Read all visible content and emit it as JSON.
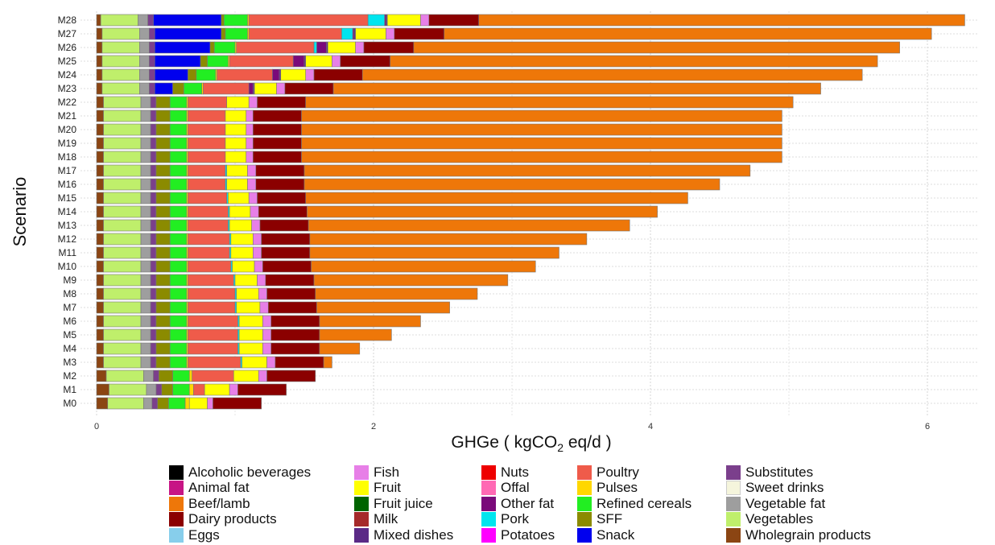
{
  "chart_data": {
    "type": "bar",
    "orientation": "horizontal",
    "stacked": true,
    "ylabel": "Scenario",
    "xlabel": "GHGe ( kgCO",
    "xlabel_sub": "2",
    "xlabel_tail": " eq/d )",
    "xlim": [
      0,
      6.3
    ],
    "xticks": [
      0,
      2,
      4,
      6
    ],
    "grid": true,
    "categories": [
      "M0",
      "M1",
      "M2",
      "M3",
      "M4",
      "M5",
      "M6",
      "M7",
      "M8",
      "M9",
      "M10",
      "M11",
      "M12",
      "M13",
      "M14",
      "M15",
      "M16",
      "M17",
      "M18",
      "M19",
      "M20",
      "M21",
      "M22",
      "M23",
      "M24",
      "M25",
      "M26",
      "M27",
      "M28"
    ],
    "series": [
      {
        "name": "Wholegrain products",
        "color": "#8B4513",
        "values": [
          0.08,
          0.09,
          0.07,
          0.05,
          0.05,
          0.05,
          0.05,
          0.05,
          0.05,
          0.05,
          0.05,
          0.05,
          0.05,
          0.05,
          0.05,
          0.05,
          0.05,
          0.05,
          0.05,
          0.05,
          0.05,
          0.05,
          0.05,
          0.04,
          0.04,
          0.04,
          0.04,
          0.04,
          0.03
        ]
      },
      {
        "name": "Vegetables",
        "color": "#BFEF6B",
        "values": [
          0.26,
          0.27,
          0.27,
          0.27,
          0.27,
          0.27,
          0.27,
          0.27,
          0.27,
          0.27,
          0.27,
          0.27,
          0.27,
          0.27,
          0.27,
          0.27,
          0.27,
          0.27,
          0.27,
          0.27,
          0.27,
          0.27,
          0.27,
          0.27,
          0.27,
          0.27,
          0.27,
          0.27,
          0.27
        ]
      },
      {
        "name": "Vegetable fat",
        "color": "#9E9E9E",
        "values": [
          0.06,
          0.07,
          0.07,
          0.07,
          0.07,
          0.07,
          0.07,
          0.07,
          0.07,
          0.07,
          0.07,
          0.07,
          0.07,
          0.07,
          0.07,
          0.07,
          0.07,
          0.07,
          0.07,
          0.07,
          0.07,
          0.07,
          0.07,
          0.07,
          0.07,
          0.07,
          0.07,
          0.07,
          0.07
        ]
      },
      {
        "name": "Substitutes",
        "color": "#7B3F8C",
        "values": [
          0.04,
          0.04,
          0.04,
          0.04,
          0.04,
          0.04,
          0.04,
          0.04,
          0.04,
          0.04,
          0.04,
          0.04,
          0.04,
          0.04,
          0.04,
          0.04,
          0.04,
          0.04,
          0.04,
          0.04,
          0.04,
          0.04,
          0.04,
          0.04,
          0.04,
          0.04,
          0.04,
          0.04,
          0.04
        ]
      },
      {
        "name": "Snack",
        "color": "#0000EE",
        "values": [
          0,
          0,
          0,
          0,
          0,
          0,
          0,
          0,
          0,
          0,
          0,
          0,
          0,
          0,
          0,
          0,
          0,
          0,
          0,
          0,
          0,
          0,
          0,
          0.13,
          0.24,
          0.33,
          0.4,
          0.48,
          0.49
        ]
      },
      {
        "name": "SFF",
        "color": "#8B8B00",
        "values": [
          0.08,
          0.08,
          0.1,
          0.1,
          0.1,
          0.1,
          0.1,
          0.1,
          0.1,
          0.1,
          0.1,
          0.1,
          0.1,
          0.1,
          0.1,
          0.1,
          0.1,
          0.1,
          0.1,
          0.1,
          0.1,
          0.1,
          0.1,
          0.08,
          0.06,
          0.05,
          0.03,
          0.03,
          0.02
        ]
      },
      {
        "name": "Refined cereals",
        "color": "#22EE22",
        "values": [
          0.12,
          0.12,
          0.12,
          0.12,
          0.12,
          0.12,
          0.12,
          0.12,
          0.12,
          0.12,
          0.12,
          0.12,
          0.12,
          0.12,
          0.12,
          0.12,
          0.12,
          0.12,
          0.12,
          0.12,
          0.12,
          0.12,
          0.12,
          0.13,
          0.14,
          0.15,
          0.15,
          0.16,
          0.17
        ]
      },
      {
        "name": "Pulses",
        "color": "#FFD700",
        "values": [
          0.03,
          0.03,
          0.02,
          0.01,
          0.01,
          0.01,
          0.01,
          0.01,
          0.01,
          0.01,
          0.01,
          0.01,
          0.01,
          0.01,
          0.01,
          0.01,
          0.01,
          0.01,
          0.01,
          0.01,
          0.01,
          0.01,
          0.01,
          0.01,
          0.01,
          0.01,
          0.01,
          0.01,
          0.01
        ]
      },
      {
        "name": "Poultry",
        "color": "#EF5B4A",
        "values": [
          0,
          0.08,
          0.3,
          0.38,
          0.36,
          0.36,
          0.36,
          0.34,
          0.34,
          0.33,
          0.31,
          0.3,
          0.3,
          0.29,
          0.29,
          0.28,
          0.27,
          0.27,
          0.27,
          0.27,
          0.27,
          0.27,
          0.28,
          0.33,
          0.4,
          0.46,
          0.56,
          0.67,
          0.86
        ]
      },
      {
        "name": "Pork",
        "color": "#00E5EE",
        "values": [
          0,
          0,
          0,
          0.01,
          0.01,
          0.01,
          0.01,
          0.01,
          0.01,
          0.01,
          0.01,
          0.01,
          0.01,
          0.01,
          0.01,
          0.01,
          0.01,
          0.01,
          0,
          0,
          0,
          0,
          0,
          0,
          0,
          0,
          0.02,
          0.08,
          0.12
        ]
      },
      {
        "name": "Other fat",
        "color": "#7A0A7A",
        "values": [
          0,
          0,
          0,
          0,
          0,
          0,
          0,
          0,
          0,
          0,
          0,
          0,
          0,
          0,
          0,
          0,
          0,
          0,
          0,
          0,
          0,
          0,
          0,
          0.03,
          0.05,
          0.08,
          0.07,
          0.01,
          0.01
        ]
      },
      {
        "name": "Mixed dishes",
        "color": "#5B2A86",
        "values": [
          0,
          0,
          0,
          0,
          0,
          0,
          0,
          0,
          0,
          0,
          0,
          0,
          0,
          0,
          0,
          0,
          0,
          0,
          0,
          0,
          0,
          0,
          0,
          0.01,
          0.01,
          0.01,
          0.01,
          0.01,
          0.01
        ]
      },
      {
        "name": "Fruit",
        "color": "#FFFF00",
        "values": [
          0.13,
          0.18,
          0.18,
          0.18,
          0.17,
          0.17,
          0.17,
          0.17,
          0.16,
          0.16,
          0.16,
          0.16,
          0.16,
          0.16,
          0.15,
          0.15,
          0.15,
          0.15,
          0.15,
          0.15,
          0.15,
          0.15,
          0.16,
          0.16,
          0.18,
          0.19,
          0.2,
          0.22,
          0.24
        ]
      },
      {
        "name": "Fish",
        "color": "#E77FE7",
        "values": [
          0.04,
          0.06,
          0.06,
          0.06,
          0.06,
          0.06,
          0.06,
          0.06,
          0.06,
          0.06,
          0.06,
          0.06,
          0.06,
          0.06,
          0.06,
          0.06,
          0.06,
          0.06,
          0.05,
          0.05,
          0.05,
          0.05,
          0.06,
          0.06,
          0.06,
          0.06,
          0.06,
          0.06,
          0.06
        ]
      },
      {
        "name": "Dairy products",
        "color": "#8B0000",
        "values": [
          0.35,
          0.35,
          0.35,
          0.35,
          0.35,
          0.35,
          0.35,
          0.35,
          0.35,
          0.35,
          0.35,
          0.35,
          0.35,
          0.35,
          0.35,
          0.35,
          0.35,
          0.35,
          0.35,
          0.35,
          0.35,
          0.35,
          0.35,
          0.35,
          0.35,
          0.36,
          0.36,
          0.36,
          0.36
        ]
      },
      {
        "name": "Beef/lamb",
        "color": "#EE7709",
        "values": [
          0,
          0,
          0,
          0.06,
          0.29,
          0.52,
          0.73,
          0.96,
          1.17,
          1.4,
          1.62,
          1.8,
          2.0,
          2.32,
          2.53,
          2.76,
          3.0,
          3.22,
          3.47,
          3.47,
          3.47,
          3.47,
          3.52,
          3.52,
          3.61,
          3.52,
          3.51,
          3.52,
          3.51
        ]
      }
    ]
  },
  "legend": {
    "items": [
      {
        "name": "Alcoholic beverages",
        "color": "#000000"
      },
      {
        "name": "Animal fat",
        "color": "#C71585"
      },
      {
        "name": "Beef/lamb",
        "color": "#EE7709"
      },
      {
        "name": "Dairy products",
        "color": "#8B0000"
      },
      {
        "name": "Eggs",
        "color": "#87CEEB"
      },
      {
        "name": "Fish",
        "color": "#E77FE7"
      },
      {
        "name": "Fruit",
        "color": "#FFFF00"
      },
      {
        "name": "Fruit juice",
        "color": "#006400"
      },
      {
        "name": "Milk",
        "color": "#A52A2A"
      },
      {
        "name": "Mixed dishes",
        "color": "#5B2A86"
      },
      {
        "name": "Nuts",
        "color": "#EE0000"
      },
      {
        "name": "Offal",
        "color": "#FF69B4"
      },
      {
        "name": "Other fat",
        "color": "#7A0A7A"
      },
      {
        "name": "Pork",
        "color": "#00E5EE"
      },
      {
        "name": "Potatoes",
        "color": "#FF00FF"
      },
      {
        "name": "Poultry",
        "color": "#EF5B4A"
      },
      {
        "name": "Pulses",
        "color": "#FFD700"
      },
      {
        "name": "Refined cereals",
        "color": "#22EE22"
      },
      {
        "name": "SFF",
        "color": "#8B8B00"
      },
      {
        "name": "Snack",
        "color": "#0000EE"
      },
      {
        "name": "Substitutes",
        "color": "#7B3F8C"
      },
      {
        "name": "Sweet drinks",
        "color": "#F5F5DC"
      },
      {
        "name": "Vegetable fat",
        "color": "#9E9E9E"
      },
      {
        "name": "Vegetables",
        "color": "#BFEF6B"
      },
      {
        "name": "Wholegrain products",
        "color": "#8B4513"
      }
    ]
  }
}
